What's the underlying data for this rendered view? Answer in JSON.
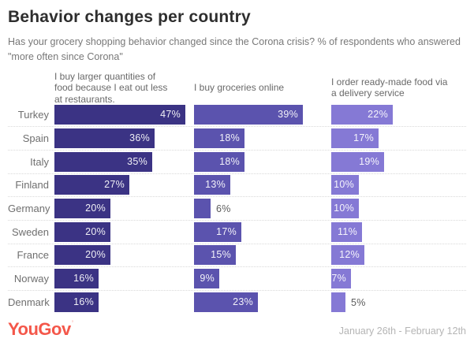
{
  "title": "Behavior changes per country",
  "subtitle": "Has your grocery shopping behavior changed since the Corona crisis? % of respondents who answered \"more often since Corona\"",
  "brand": {
    "name": "YouGov",
    "color": "#f4574a"
  },
  "footer": {
    "date_range": "January 26th - February 12th"
  },
  "chart_data": {
    "type": "bar",
    "orientation": "horizontal",
    "title": "Behavior changes per country",
    "value_suffix": "%",
    "xlim": [
      0,
      50
    ],
    "grid": "dotted row separators",
    "legend_position": "column headers above each bar group",
    "categories": [
      "Turkey",
      "Spain",
      "Italy",
      "Finland",
      "Germany",
      "Sweden",
      "France",
      "Norway",
      "Denmark"
    ],
    "series": [
      {
        "name": "I buy larger quantities of food because I eat out less at restaurants.",
        "color": "#3b3384",
        "values": [
          47,
          36,
          35,
          27,
          20,
          20,
          20,
          16,
          16
        ]
      },
      {
        "name": "I buy groceries online",
        "color": "#5b53ae",
        "values": [
          39,
          18,
          18,
          13,
          6,
          17,
          15,
          9,
          23
        ]
      },
      {
        "name": "I order ready-made food via a delivery service",
        "color": "#8579d5",
        "values": [
          22,
          17,
          19,
          10,
          10,
          11,
          12,
          7,
          5
        ]
      }
    ]
  }
}
